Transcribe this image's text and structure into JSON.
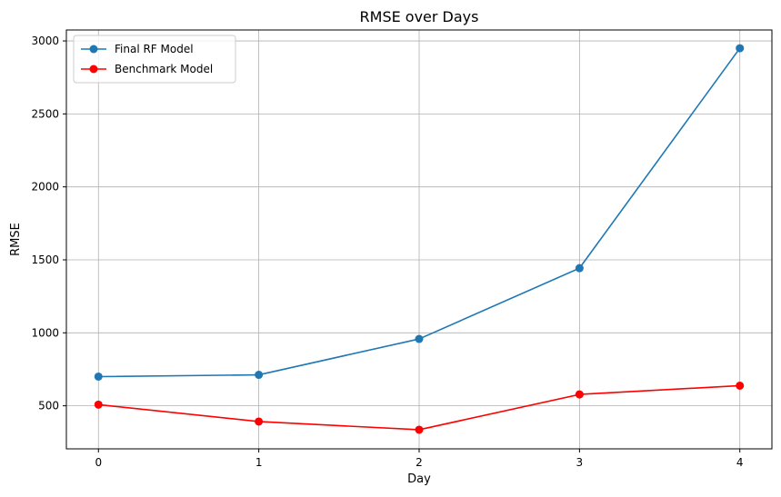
{
  "chart_data": {
    "type": "line",
    "title": "RMSE over Days",
    "xlabel": "Day",
    "ylabel": "RMSE",
    "x": [
      0,
      1,
      2,
      3,
      4
    ],
    "xticks": [
      "0",
      "1",
      "2",
      "3",
      "4"
    ],
    "yticks": [
      "500",
      "1000",
      "1500",
      "2000",
      "2500",
      "3000"
    ],
    "xlim": [
      -0.2,
      4.2
    ],
    "ylim": [
      205,
      3075
    ],
    "grid": true,
    "legend_position": "top-left",
    "series": [
      {
        "name": "Final RF Model",
        "color": "#1f77b4",
        "marker": "circle",
        "values": [
          700,
          712,
          958,
          1443,
          2950
        ]
      },
      {
        "name": "Benchmark Model",
        "color": "#ff0000",
        "marker": "circle",
        "values": [
          508,
          392,
          336,
          578,
          638
        ]
      }
    ]
  }
}
